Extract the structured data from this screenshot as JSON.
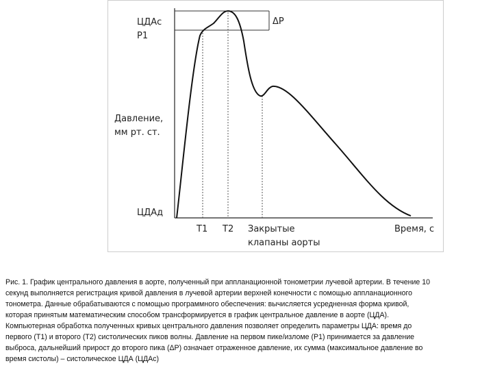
{
  "figure": {
    "labels": {
      "cdas": "ЦДАс",
      "p1": "Р1",
      "dp": "ΔР",
      "y_axis_1": "Давление,",
      "y_axis_2": "мм рт. ст.",
      "cdad": "ЦДАд",
      "t1": "Т1",
      "t2": "Т2",
      "closed_1": "Закрытые",
      "closed_2": "клапаны аорты",
      "x_axis": "Время, с"
    }
  },
  "caption": {
    "lines": [
      "Рис. 1. График центрального давления в аорте, полученный при аппланационной тонометрии лучевой артерии. В течение 10",
      "секунд выполняется регистрация кривой давления в лучевой артерии верхней конечности с помощью аппланационного",
      "тонометра. Данные обрабатываются с помощью программного обеспечения: вычисляется усредненная форма кривой,",
      "которая принятым математическим способом трансформируется в график центральное давление в аорте (ЦДА).",
      "Компьютерная обработка полученных кривых центрального давления позволяет определить параметры ЦДА: время до",
      "первого (Т1) и второго (Т2) систолических пиков волны. Давление на первом пике/изломе (Р1) принимается за давление",
      "выброса, дальнейший прирост до второго пика (ΔР) означает отраженное давление, их сумма (максимальное давление во",
      "время систолы) – систолическое ЦДА (ЦДАс)"
    ]
  }
}
